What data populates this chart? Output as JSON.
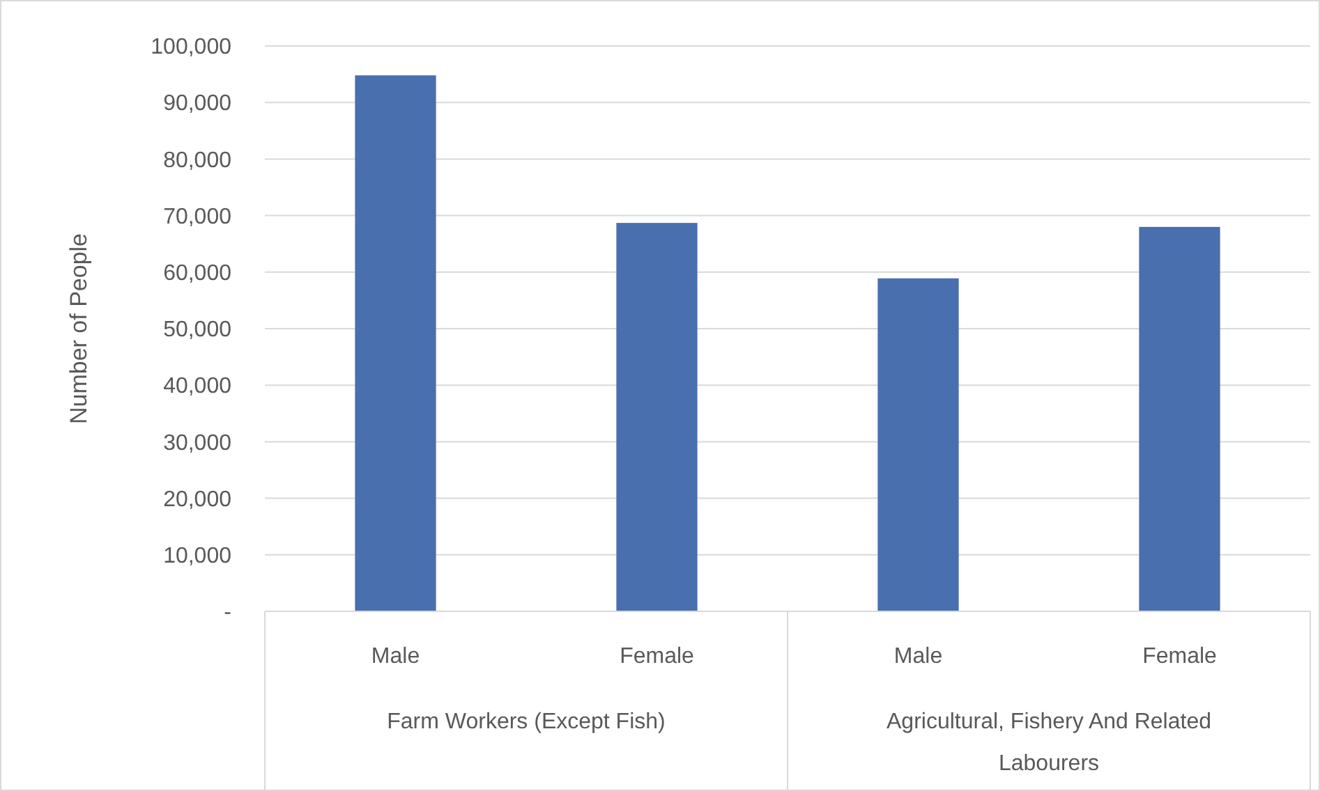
{
  "chart_data": {
    "type": "bar",
    "ylabel": "Number of People",
    "categories": [
      "Male",
      "Female",
      "Male",
      "Female"
    ],
    "values": [
      94800,
      68700,
      58900,
      68000
    ],
    "color": "#4a6fae",
    "annotations": [
      "Farm Workers (Except Fish)",
      "Agricultural, Fishery And Related Labourers"
    ],
    "ylim": [
      0,
      100000
    ],
    "yticks": [
      {
        "value": 0,
        "label": "-"
      },
      {
        "value": 10000,
        "label": "10,000"
      },
      {
        "value": 20000,
        "label": "20,000"
      },
      {
        "value": 30000,
        "label": "30,000"
      },
      {
        "value": 40000,
        "label": "40,000"
      },
      {
        "value": 50000,
        "label": "50,000"
      },
      {
        "value": 60000,
        "label": "60,000"
      },
      {
        "value": 70000,
        "label": "70,000"
      },
      {
        "value": 80000,
        "label": "80,000"
      },
      {
        "value": 90000,
        "label": "90,000"
      },
      {
        "value": 100000,
        "label": "100,000"
      }
    ],
    "grid": "y"
  }
}
